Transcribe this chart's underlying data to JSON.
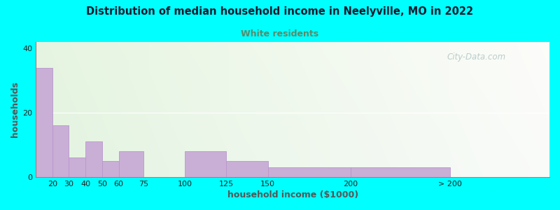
{
  "title": "Distribution of median household income in Neelyville, MO in 2022",
  "subtitle": "White residents",
  "xlabel": "household income ($1000)",
  "ylabel": "households",
  "background_outer": "#00FFFF",
  "bar_color": "#c9aed6",
  "bar_edge_color": "#b898cc",
  "title_color": "#1a1a2e",
  "subtitle_color": "#7a9a7a",
  "axis_label_color": "#555555",
  "tick_label_color": "#222222",
  "grid_color": "#ffffff",
  "watermark_color": "#b0c4c4",
  "ylim": [
    0,
    42
  ],
  "yticks": [
    0,
    20,
    40
  ],
  "tick_positions": [
    20,
    30,
    40,
    50,
    60,
    75,
    100,
    125,
    150,
    200,
    260
  ],
  "tick_labels": [
    "20",
    "30",
    "40",
    "50",
    "60",
    "75",
    "100",
    "125",
    "150",
    "200",
    "> 200"
  ],
  "bar_lefts": [
    10,
    20,
    30,
    40,
    50,
    60,
    75,
    100,
    125,
    150,
    200
  ],
  "bar_widths": [
    10,
    10,
    10,
    10,
    10,
    15,
    25,
    25,
    25,
    50,
    60
  ],
  "bar_heights": [
    34,
    16,
    6,
    11,
    5,
    8,
    0,
    8,
    5,
    3,
    3
  ],
  "xlim": [
    10,
    320
  ],
  "watermark": "City-Data.com"
}
